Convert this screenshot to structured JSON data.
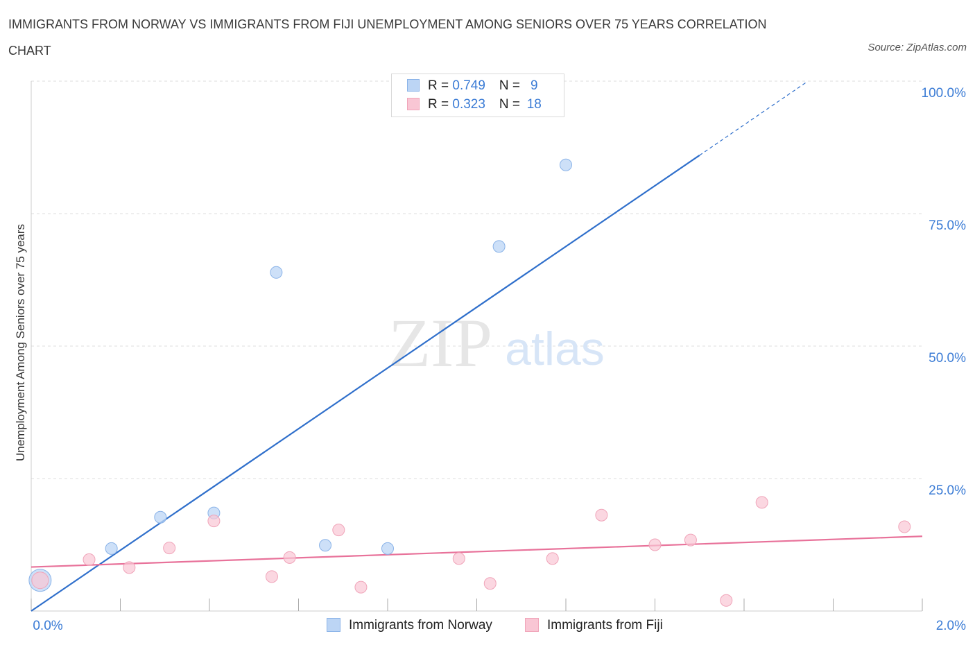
{
  "header": {
    "title": "IMMIGRANTS FROM NORWAY VS IMMIGRANTS FROM FIJI UNEMPLOYMENT AMONG SENIORS OVER 75 YEARS CORRELATION CHART",
    "source": "Source: ZipAtlas.com"
  },
  "watermark": {
    "zip": "ZIP",
    "atlas": "atlas"
  },
  "legend": {
    "norway": {
      "r_label": "R = ",
      "r_value": "0.749",
      "n_label": "N = ",
      "n_value": "9"
    },
    "fiji": {
      "r_label": "R = ",
      "r_value": "0.323",
      "n_label": "N = ",
      "n_value": "18"
    }
  },
  "colors": {
    "norway_fill": "#bcd5f5",
    "norway_stroke": "#8ab3e8",
    "norway_line": "#2f6fcb",
    "fiji_fill": "#f9c6d4",
    "fiji_stroke": "#f0a4b9",
    "fiji_line": "#e8729a",
    "tick_label": "#3a7bd5",
    "grid": "#dddddd"
  },
  "chart_data": {
    "type": "scatter",
    "title": "IMMIGRANTS FROM NORWAY VS IMMIGRANTS FROM FIJI UNEMPLOYMENT AMONG SENIORS OVER 75 YEARS CORRELATION CHART",
    "xlabel": "",
    "ylabel": "Unemployment Among Seniors over 75 years",
    "xlim": [
      0,
      2.0
    ],
    "ylim": [
      0,
      100
    ],
    "x_tick_labels": [
      "0.0%",
      "2.0%"
    ],
    "y_ticks": [
      25,
      50,
      75,
      100
    ],
    "y_tick_labels": [
      "25.0%",
      "50.0%",
      "75.0%",
      "100.0%"
    ],
    "legend_placement": "top-center",
    "series": [
      {
        "name": "Immigrants from Norway",
        "points": [
          {
            "x": 0.02,
            "y": 5.8,
            "size": "large"
          },
          {
            "x": 0.18,
            "y": 11.8
          },
          {
            "x": 0.29,
            "y": 17.7
          },
          {
            "x": 0.41,
            "y": 18.5
          },
          {
            "x": 0.55,
            "y": 63.9
          },
          {
            "x": 0.66,
            "y": 12.4
          },
          {
            "x": 0.8,
            "y": 11.8
          },
          {
            "x": 1.05,
            "y": 68.8
          },
          {
            "x": 1.2,
            "y": 84.2
          }
        ],
        "trend": {
          "x0": 0.0,
          "y0": 0.0,
          "x1": 1.5,
          "y1": 86.0,
          "dash_x1": 1.74,
          "dash_y1": 99.8
        }
      },
      {
        "name": "Immigrants from Fiji",
        "points": [
          {
            "x": 0.02,
            "y": 5.8,
            "size": "medium"
          },
          {
            "x": 0.13,
            "y": 9.7
          },
          {
            "x": 0.22,
            "y": 8.2
          },
          {
            "x": 0.31,
            "y": 11.9
          },
          {
            "x": 0.41,
            "y": 17.0
          },
          {
            "x": 0.54,
            "y": 6.5
          },
          {
            "x": 0.58,
            "y": 10.1
          },
          {
            "x": 0.69,
            "y": 15.3
          },
          {
            "x": 0.74,
            "y": 4.5
          },
          {
            "x": 0.96,
            "y": 9.9
          },
          {
            "x": 1.03,
            "y": 5.2
          },
          {
            "x": 1.17,
            "y": 9.9
          },
          {
            "x": 1.28,
            "y": 18.1
          },
          {
            "x": 1.4,
            "y": 12.5
          },
          {
            "x": 1.48,
            "y": 13.4
          },
          {
            "x": 1.56,
            "y": 2.0
          },
          {
            "x": 1.64,
            "y": 20.5
          },
          {
            "x": 1.96,
            "y": 15.9
          }
        ],
        "trend": {
          "x0": 0.0,
          "y0": 8.3,
          "x1": 2.0,
          "y1": 14.1
        }
      }
    ]
  }
}
